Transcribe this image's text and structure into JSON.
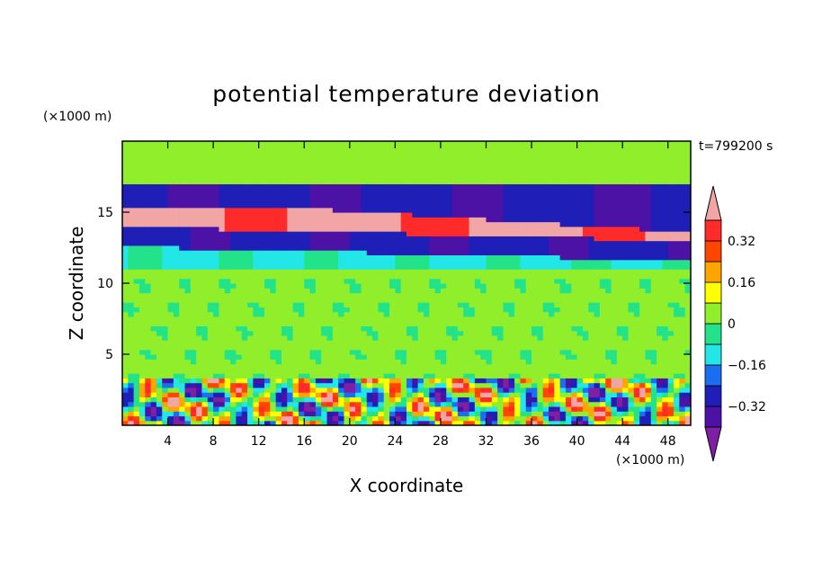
{
  "chart_data": {
    "type": "heatmap",
    "title": "potential temperature deviation",
    "xlabel": "X coordinate",
    "ylabel": "Z coordinate",
    "x_unit": "(×1000 m)",
    "y_unit": "(×1000 m)",
    "time_label": "t=799200 s",
    "xlim": [
      0,
      50
    ],
    "ylim": [
      0,
      20
    ],
    "x_ticks": [
      4,
      8,
      12,
      16,
      20,
      24,
      28,
      32,
      36,
      40,
      44,
      48
    ],
    "y_ticks": [
      5,
      10,
      15
    ],
    "colorbar": {
      "labels": [
        "0.32",
        "0.16",
        "0",
        "−0.16",
        "−0.32"
      ],
      "label_values": [
        0.32,
        0.16,
        0,
        -0.16,
        -0.32
      ],
      "levels": [
        -0.4,
        -0.32,
        -0.24,
        -0.16,
        -0.08,
        0,
        0.08,
        0.16,
        0.24,
        0.32,
        0.4
      ],
      "colors": [
        "#7f1fa3",
        "#4c12a6",
        "#1f1fb8",
        "#1c6ef0",
        "#23e6e6",
        "#22e38a",
        "#90ee2a",
        "#ffff00",
        "#ffa500",
        "#ff4500",
        "#ff2a2a",
        "#f2a5a5"
      ],
      "extend": "both"
    },
    "bands": [
      {
        "z_range": [
          0,
          3.5
        ],
        "description_value": "mixed",
        "level": "oscillating"
      },
      {
        "z_range": [
          3.5,
          11
        ],
        "level": 0.04
      },
      {
        "z_range": [
          11,
          12.5
        ],
        "level": -0.1
      },
      {
        "z_range": [
          12.5,
          14
        ],
        "level": -0.3
      },
      {
        "z_range": [
          14,
          15.5
        ],
        "level": 0.4
      },
      {
        "z_range": [
          15.5,
          17
        ],
        "level": -0.3
      },
      {
        "z_range": [
          17,
          20
        ],
        "level": 0.04
      }
    ]
  }
}
